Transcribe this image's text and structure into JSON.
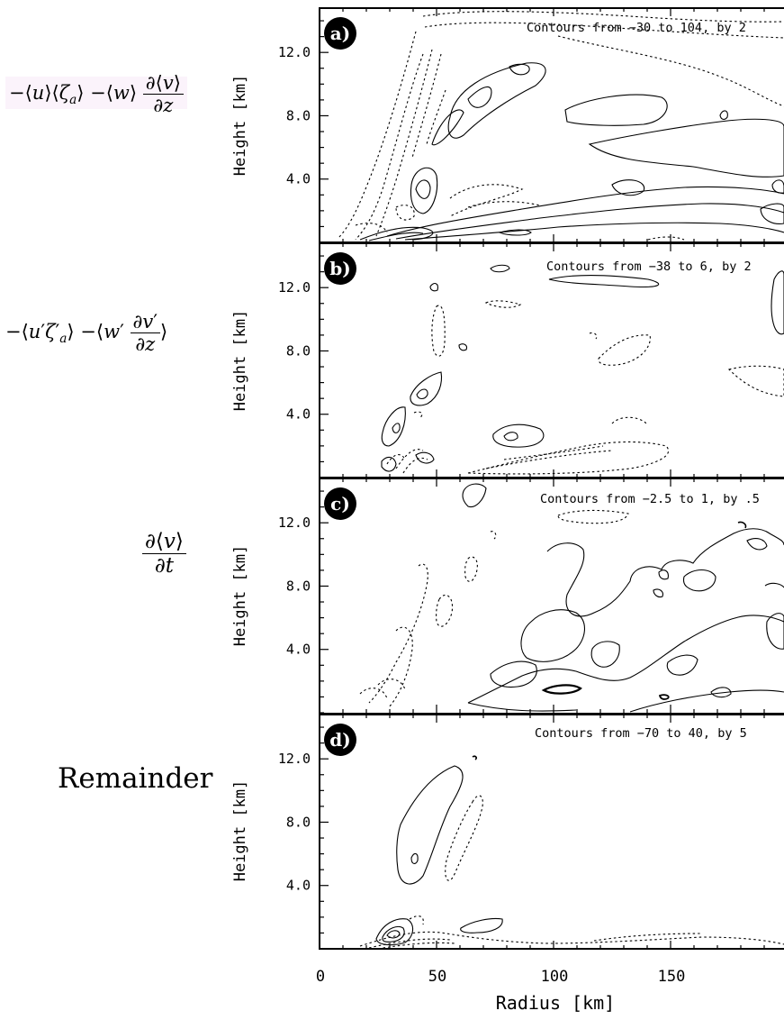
{
  "left_labels": {
    "a": {
      "text": "−⟨u⟩⟨ζa⟩ −⟨w⟩ ∂⟨v⟩/∂z"
    },
    "b": {
      "text": "−⟨u′ζ′a⟩ −⟨w′ ∂v′/∂z⟩"
    },
    "c": {
      "text": "∂⟨v⟩/∂t"
    },
    "d": {
      "text": "Remainder"
    }
  },
  "chart_data": [
    {
      "type": "contour",
      "panel_label": "a)",
      "annotation": "Contours from −30 to 104, by 2",
      "ylabel": "Height [km]",
      "yticks": [
        "4.0",
        "8.0",
        "12.0"
      ],
      "ylim": [
        0,
        14.8
      ],
      "xlim": [
        0,
        200
      ]
    },
    {
      "type": "contour",
      "panel_label": "b)",
      "annotation": "Contours from −38 to 6, by 2",
      "ylabel": "Height [km]",
      "yticks": [
        "4.0",
        "8.0",
        "12.0"
      ],
      "ylim": [
        0,
        14.8
      ],
      "xlim": [
        0,
        200
      ]
    },
    {
      "type": "contour",
      "panel_label": "c)",
      "annotation": "Contours from −2.5 to 1, by .5",
      "ylabel": "Height [km]",
      "yticks": [
        "4.0",
        "8.0",
        "12.0"
      ],
      "ylim": [
        0,
        14.8
      ],
      "xlim": [
        0,
        200
      ]
    },
    {
      "type": "contour",
      "panel_label": "d)",
      "annotation": "Contours from −70 to 40, by 5",
      "ylabel": "Height [km]",
      "yticks": [
        "4.0",
        "8.0",
        "12.0"
      ],
      "ylim": [
        0,
        14.8
      ],
      "xlim": [
        0,
        200
      ],
      "xlabel": "Radius [km]",
      "xticks": [
        "0",
        "50",
        "100",
        "150"
      ]
    }
  ]
}
